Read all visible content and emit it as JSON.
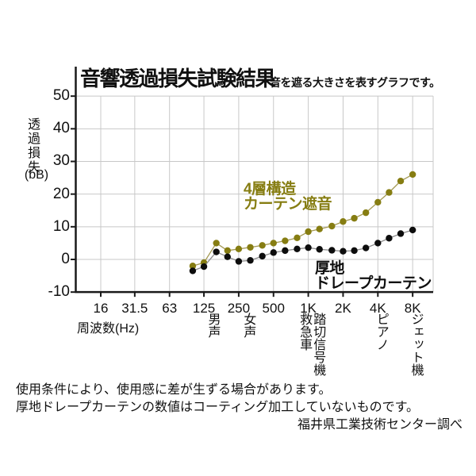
{
  "header": {
    "title": "音響透過損失試験結果",
    "subtitle": "音を遮る大きさを表すグラフです。"
  },
  "y_axis": {
    "label_vertical": "透過損失",
    "label_unit": "(bB)",
    "ticks": [
      50,
      40,
      30,
      20,
      10,
      0,
      -10
    ]
  },
  "x_axis": {
    "label": "周波数(Hz)",
    "ticks": [
      {
        "label": "16",
        "freq": 16
      },
      {
        "label": "31.5",
        "freq": 31.5
      },
      {
        "label": "63",
        "freq": 63
      },
      {
        "label": "125",
        "freq": 125
      },
      {
        "label": "250",
        "freq": 250
      },
      {
        "label": "500",
        "freq": 500
      },
      {
        "label": "1K",
        "freq": 1000
      },
      {
        "label": "2K",
        "freq": 2000
      },
      {
        "label": "4K",
        "freq": 4000
      },
      {
        "label": "8K",
        "freq": 8000
      }
    ]
  },
  "event_labels": [
    {
      "label": "男声",
      "freq": 125,
      "dx": 11
    },
    {
      "label": "女声",
      "freq": 250,
      "dx": 12
    },
    {
      "label": "救急車",
      "freq": 1000,
      "dx": -5
    },
    {
      "label": "踏切信号機",
      "freq": 1250,
      "dx": -2
    },
    {
      "label": "ピアノ",
      "freq": 4000,
      "dx": 4
    },
    {
      "label": "ジェット機",
      "freq": 8000,
      "dx": 4
    }
  ],
  "legend": {
    "series1": {
      "lines": [
        "4層構造",
        "カーテン遮音"
      ],
      "color": "#867d12"
    },
    "series2": {
      "lines": [
        "厚地",
        "ドレープカーテン"
      ],
      "color": "#0f0f0f"
    }
  },
  "footer": {
    "note1": "使用条件により、使用感に差が生ずる場合があります。",
    "note2": "厚地ドレープカーテンの数値はコーティング加工していないものです。",
    "credit": "福井県工業技術センター調べ"
  },
  "colors": {
    "background": "#ffffff",
    "grid": "#c8c8c8",
    "axis": "#1a1a1a",
    "text": "#111111"
  },
  "chart_data": {
    "type": "line",
    "title": "音響透過損失試験結果",
    "subtitle": "音を遮る大きさを表すグラフです。",
    "xlabel": "周波数(Hz)",
    "ylabel": "透過損失(bB)",
    "x_scale": "log",
    "ylim": [
      -10,
      50
    ],
    "grid": true,
    "frequencies": [
      100,
      125,
      160,
      200,
      250,
      315,
      400,
      500,
      630,
      800,
      1000,
      1250,
      1600,
      2000,
      2500,
      3150,
      4000,
      5000,
      6300,
      8000
    ],
    "series": [
      {
        "name": "4層構造カーテン遮音",
        "color": "#867d12",
        "line_color": "#a49a55",
        "values": [
          -2,
          -1,
          5,
          2.7,
          3.2,
          3.7,
          4.3,
          5,
          5.7,
          6.6,
          8.5,
          9.3,
          10.2,
          11.6,
          12.6,
          14.3,
          17.5,
          20.5,
          24,
          26
        ]
      },
      {
        "name": "厚地ドレープカーテン",
        "color": "#0d0d0d",
        "line_color": "#8c8c8c",
        "values": [
          -3.5,
          -2.2,
          2.3,
          0.8,
          -0.6,
          -0.3,
          1,
          2.1,
          2.7,
          3.2,
          3.6,
          3.1,
          2.8,
          2.5,
          2.7,
          3.5,
          5,
          6.5,
          7.9,
          9
        ]
      }
    ]
  }
}
